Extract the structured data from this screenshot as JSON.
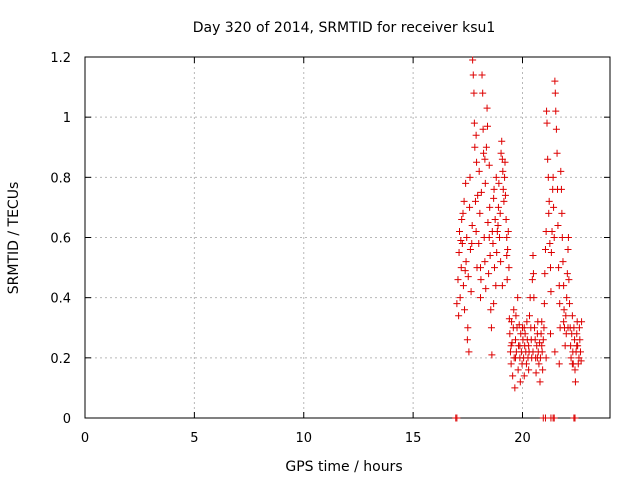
{
  "chart_data": {
    "type": "scatter",
    "title": "Day 320 of 2014, SRMTID for receiver ksu1",
    "xlabel": "GPS time / hours",
    "ylabel": "SRMTID / TECUs",
    "xlim": [
      0,
      24
    ],
    "ylim": [
      0,
      1.2
    ],
    "x_ticks": [
      0,
      5,
      10,
      15,
      20
    ],
    "x_tick_labels": [
      "0",
      "5",
      "10",
      "15",
      "20"
    ],
    "y_ticks": [
      0,
      0.2,
      0.4,
      0.6,
      0.8,
      1.0,
      1.2
    ],
    "y_tick_labels": [
      "0",
      "0.2",
      "0.4",
      "0.6",
      "0.8",
      "1",
      "1.2"
    ],
    "grid": true,
    "marker": "plus",
    "series": [
      {
        "name": "SRMTID",
        "color": "#dd0000",
        "points": [
          [
            17.0,
            0.38
          ],
          [
            17.05,
            0.46
          ],
          [
            17.1,
            0.55
          ],
          [
            17.12,
            0.62
          ],
          [
            17.15,
            0.4
          ],
          [
            17.2,
            0.5
          ],
          [
            17.22,
            0.66
          ],
          [
            17.25,
            0.58
          ],
          [
            17.3,
            0.44
          ],
          [
            17.33,
            0.72
          ],
          [
            17.35,
            0.36
          ],
          [
            17.4,
            0.78
          ],
          [
            17.42,
            0.52
          ],
          [
            17.45,
            0.6
          ],
          [
            17.5,
            0.3
          ],
          [
            17.52,
            0.47
          ],
          [
            17.55,
            0.22
          ],
          [
            17.58,
            0.7
          ],
          [
            17.6,
            0.8
          ],
          [
            17.62,
            0.56
          ],
          [
            17.65,
            0.42
          ],
          [
            17.7,
            0.64
          ],
          [
            17.72,
            1.19
          ],
          [
            17.75,
            1.14
          ],
          [
            17.78,
            1.08
          ],
          [
            17.8,
            0.98
          ],
          [
            17.82,
            0.9
          ],
          [
            17.85,
            0.72
          ],
          [
            17.88,
            0.62
          ],
          [
            17.9,
            0.85
          ],
          [
            17.92,
            0.5
          ],
          [
            17.95,
            0.74
          ],
          [
            18.0,
            0.58
          ],
          [
            18.02,
            0.82
          ],
          [
            18.05,
            0.68
          ],
          [
            18.08,
            0.4
          ],
          [
            18.1,
            0.46
          ],
          [
            18.12,
            0.75
          ],
          [
            18.15,
            1.14
          ],
          [
            18.18,
            1.08
          ],
          [
            18.2,
            0.96
          ],
          [
            18.22,
            0.88
          ],
          [
            18.25,
            0.6
          ],
          [
            18.28,
            0.52
          ],
          [
            18.3,
            0.78
          ],
          [
            18.32,
            0.43
          ],
          [
            18.35,
            0.9
          ],
          [
            18.38,
            1.03
          ],
          [
            18.4,
            0.97
          ],
          [
            18.42,
            0.65
          ],
          [
            18.45,
            0.48
          ],
          [
            18.48,
            0.84
          ],
          [
            18.5,
            0.7
          ],
          [
            18.52,
            0.54
          ],
          [
            18.55,
            0.36
          ],
          [
            18.58,
            0.3
          ],
          [
            18.6,
            0.21
          ],
          [
            18.62,
            0.62
          ],
          [
            18.65,
            0.58
          ],
          [
            18.68,
            0.73
          ],
          [
            18.7,
            0.76
          ],
          [
            18.72,
            0.5
          ],
          [
            18.75,
            0.66
          ],
          [
            18.78,
            0.44
          ],
          [
            18.8,
            0.8
          ],
          [
            18.82,
            0.55
          ],
          [
            18.85,
            0.62
          ],
          [
            18.9,
            0.7
          ],
          [
            18.92,
            0.78
          ],
          [
            18.95,
            0.6
          ],
          [
            18.98,
            0.68
          ],
          [
            19.0,
            0.52
          ],
          [
            19.02,
            0.88
          ],
          [
            19.05,
            0.92
          ],
          [
            19.08,
            0.86
          ],
          [
            19.1,
            0.82
          ],
          [
            19.12,
            0.76
          ],
          [
            19.15,
            0.72
          ],
          [
            19.18,
            0.8
          ],
          [
            19.2,
            0.85
          ],
          [
            19.22,
            0.74
          ],
          [
            19.25,
            0.66
          ],
          [
            19.28,
            0.6
          ],
          [
            19.3,
            0.46
          ],
          [
            19.32,
            0.56
          ],
          [
            19.35,
            0.62
          ],
          [
            19.38,
            0.5
          ],
          [
            19.4,
            0.33
          ],
          [
            19.42,
            0.28
          ],
          [
            19.45,
            0.22
          ],
          [
            19.48,
            0.18
          ],
          [
            19.5,
            0.32
          ],
          [
            19.52,
            0.25
          ],
          [
            19.55,
            0.14
          ],
          [
            19.58,
            0.3
          ],
          [
            19.6,
            0.36
          ],
          [
            19.62,
            0.2
          ],
          [
            19.65,
            0.1
          ],
          [
            19.68,
            0.26
          ],
          [
            19.7,
            0.34
          ],
          [
            19.72,
            0.22
          ],
          [
            19.75,
            0.3
          ],
          [
            19.78,
            0.4
          ],
          [
            19.8,
            0.16
          ],
          [
            19.82,
            0.24
          ],
          [
            19.85,
            0.31
          ],
          [
            19.88,
            0.2
          ],
          [
            19.9,
            0.12
          ],
          [
            19.92,
            0.28
          ],
          [
            19.95,
            0.22
          ],
          [
            19.98,
            0.18
          ],
          [
            20.0,
            0.3
          ],
          [
            20.02,
            0.26
          ],
          [
            20.05,
            0.2
          ],
          [
            20.08,
            0.14
          ],
          [
            20.1,
            0.24
          ],
          [
            20.12,
            0.28
          ],
          [
            20.15,
            0.22
          ],
          [
            20.18,
            0.18
          ],
          [
            20.2,
            0.32
          ],
          [
            20.22,
            0.26
          ],
          [
            20.25,
            0.2
          ],
          [
            20.28,
            0.16
          ],
          [
            20.3,
            0.22
          ],
          [
            20.32,
            0.34
          ],
          [
            20.35,
            0.4
          ],
          [
            20.38,
            0.3
          ],
          [
            20.4,
            0.26
          ],
          [
            20.42,
            0.2
          ],
          [
            20.45,
            0.46
          ],
          [
            20.48,
            0.54
          ],
          [
            20.5,
            0.48
          ],
          [
            20.52,
            0.4
          ],
          [
            20.55,
            0.3
          ],
          [
            20.58,
            0.26
          ],
          [
            20.6,
            0.2
          ],
          [
            20.62,
            0.15
          ],
          [
            20.65,
            0.24
          ],
          [
            20.68,
            0.28
          ],
          [
            20.7,
            0.32
          ],
          [
            20.72,
            0.22
          ],
          [
            20.75,
            0.18
          ],
          [
            20.78,
            0.25
          ],
          [
            20.8,
            0.12
          ],
          [
            20.82,
            0.2
          ],
          [
            20.85,
            0.28
          ],
          [
            20.88,
            0.32
          ],
          [
            20.9,
            0.22
          ],
          [
            20.92,
            0.16
          ],
          [
            20.95,
            0.26
          ],
          [
            20.98,
            0.3
          ],
          [
            21.0,
            0.38
          ],
          [
            21.02,
            0.48
          ],
          [
            21.05,
            0.56
          ],
          [
            21.08,
            0.62
          ],
          [
            21.1,
            1.02
          ],
          [
            21.12,
            0.98
          ],
          [
            21.15,
            0.86
          ],
          [
            21.18,
            0.8
          ],
          [
            21.2,
            0.68
          ],
          [
            21.22,
            0.72
          ],
          [
            21.25,
            0.58
          ],
          [
            21.28,
            0.5
          ],
          [
            21.3,
            0.42
          ],
          [
            21.32,
            0.55
          ],
          [
            21.35,
            0.62
          ],
          [
            21.38,
            0.76
          ],
          [
            21.4,
            0.8
          ],
          [
            21.42,
            0.7
          ],
          [
            21.45,
            0.6
          ],
          [
            21.48,
            1.12
          ],
          [
            21.5,
            1.08
          ],
          [
            21.52,
            1.02
          ],
          [
            21.55,
            0.96
          ],
          [
            21.58,
            0.88
          ],
          [
            21.6,
            0.76
          ],
          [
            21.62,
            0.64
          ],
          [
            21.65,
            0.5
          ],
          [
            21.68,
            0.44
          ],
          [
            21.7,
            0.38
          ],
          [
            21.72,
            0.3
          ],
          [
            21.75,
            0.82
          ],
          [
            21.78,
            0.76
          ],
          [
            21.8,
            0.68
          ],
          [
            21.82,
            0.6
          ],
          [
            21.85,
            0.52
          ],
          [
            21.88,
            0.44
          ],
          [
            21.9,
            0.36
          ],
          [
            21.92,
            0.3
          ],
          [
            21.95,
            0.24
          ],
          [
            21.98,
            0.34
          ],
          [
            22.0,
            0.28
          ],
          [
            22.02,
            0.4
          ],
          [
            22.05,
            0.48
          ],
          [
            22.08,
            0.56
          ],
          [
            22.1,
            0.6
          ],
          [
            22.12,
            0.46
          ],
          [
            22.15,
            0.38
          ],
          [
            22.18,
            0.3
          ],
          [
            22.2,
            0.24
          ],
          [
            22.22,
            0.2
          ],
          [
            22.25,
            0.28
          ],
          [
            22.28,
            0.34
          ],
          [
            22.3,
            0.22
          ],
          [
            22.32,
            0.18
          ],
          [
            22.35,
            0.3
          ],
          [
            22.38,
            0.26
          ],
          [
            22.4,
            0.16
          ],
          [
            22.42,
            0.12
          ],
          [
            22.45,
            0.22
          ],
          [
            22.48,
            0.28
          ],
          [
            22.5,
            0.32
          ],
          [
            22.52,
            0.24
          ],
          [
            22.55,
            0.18
          ],
          [
            22.58,
            0.2
          ],
          [
            22.6,
            0.3
          ],
          [
            22.62,
            0.26
          ],
          [
            22.65,
            0.22
          ],
          [
            22.68,
            0.19
          ],
          [
            22.7,
            0.32
          ],
          [
            17.08,
            0.34
          ],
          [
            17.18,
            0.59
          ],
          [
            17.28,
            0.68
          ],
          [
            17.38,
            0.49
          ],
          [
            17.48,
            0.26
          ],
          [
            17.68,
            0.58
          ],
          [
            17.88,
            0.94
          ],
          [
            18.08,
            0.5
          ],
          [
            18.28,
            0.86
          ],
          [
            18.48,
            0.6
          ],
          [
            18.68,
            0.38
          ],
          [
            18.88,
            0.64
          ],
          [
            19.08,
            0.44
          ],
          [
            19.28,
            0.54
          ],
          [
            19.48,
            0.24
          ],
          [
            19.68,
            0.2
          ],
          [
            19.88,
            0.24
          ],
          [
            20.08,
            0.3
          ],
          [
            20.28,
            0.24
          ],
          [
            20.48,
            0.22
          ],
          [
            20.68,
            0.2
          ],
          [
            20.88,
            0.24
          ],
          [
            21.08,
            0.2
          ],
          [
            21.28,
            0.28
          ],
          [
            21.48,
            0.22
          ],
          [
            21.68,
            0.18
          ],
          [
            21.88,
            0.32
          ],
          [
            22.08,
            0.3
          ],
          [
            22.28,
            0.18
          ],
          [
            22.48,
            0.24
          ],
          [
            16.95,
            0.0
          ],
          [
            17.0,
            0.0
          ],
          [
            20.95,
            0.0
          ],
          [
            21.05,
            0.0
          ],
          [
            21.3,
            0.0
          ],
          [
            21.4,
            0.0
          ],
          [
            21.45,
            0.0
          ],
          [
            22.35,
            0.0
          ],
          [
            22.4,
            0.0
          ]
        ]
      }
    ]
  }
}
